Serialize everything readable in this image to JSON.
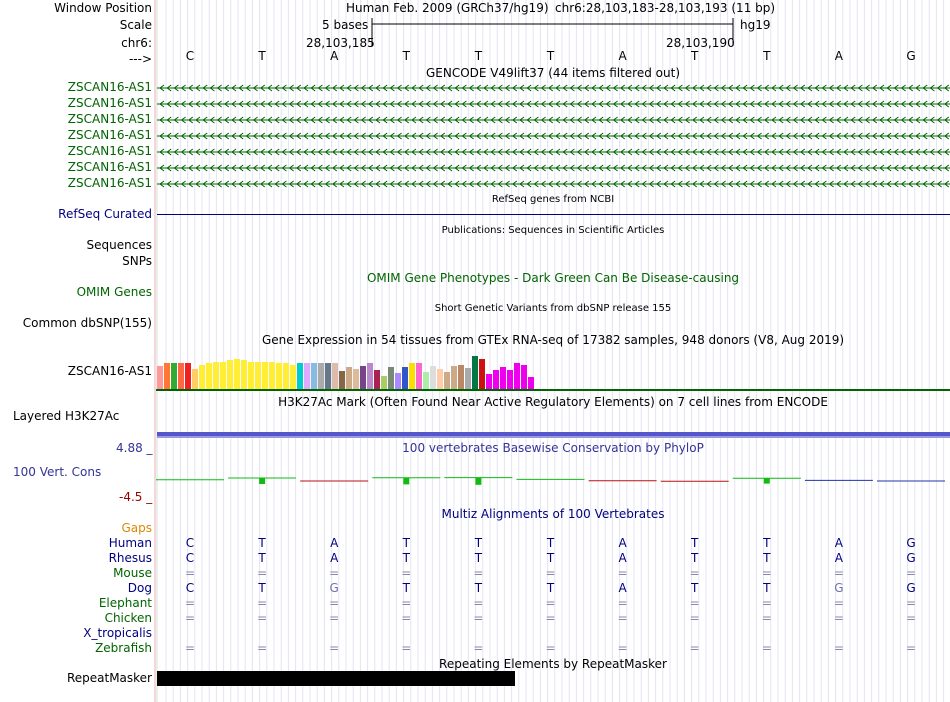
{
  "header": {
    "window_position_label": "Window Position",
    "scale_label": "Scale",
    "chrom_label": "chr6:",
    "arrow_label": "--->",
    "assembly_title": "Human Feb. 2009 (GRCh37/hg19)",
    "position": "chr6:28,103,183-28,103,193 (11 bp)",
    "scale_text": "5 bases",
    "db": "hg19",
    "coord_left": "28,103,185",
    "coord_right": "28,103,190"
  },
  "sequence": [
    "C",
    "T",
    "A",
    "T",
    "T",
    "T",
    "A",
    "T",
    "T",
    "A",
    "G"
  ],
  "gencode": {
    "title": "GENCODE V49lift37 (44 items filtered out)",
    "items": [
      "ZSCAN16-AS1",
      "ZSCAN16-AS1",
      "ZSCAN16-AS1",
      "ZSCAN16-AS1",
      "ZSCAN16-AS1",
      "ZSCAN16-AS1",
      "ZSCAN16-AS1"
    ]
  },
  "refseq": {
    "title": "RefSeq genes from NCBI",
    "label": "RefSeq Curated"
  },
  "publications": {
    "title": "Publications: Sequences in Scientific Articles",
    "label": "Sequences"
  },
  "snps": {
    "label": "SNPs"
  },
  "omim": {
    "title": "OMIM Gene Phenotypes - Dark Green Can Be Disease-causing",
    "label": "OMIM Genes"
  },
  "dbsnp": {
    "title": "Short Genetic Variants from dbSNP release 155",
    "label": "Common dbSNP(155)"
  },
  "gtex": {
    "title": "Gene Expression in 54 tissues from GTEx RNA-seq of 17382 samples, 948 donors (V8, Aug 2019)",
    "label": "ZSCAN16-AS1",
    "bar_fill_fractions": [
      0.55,
      0.62,
      0.62,
      0.62,
      0.62,
      0.48,
      0.58,
      0.62,
      0.65,
      0.65,
      0.7,
      0.72,
      0.68,
      0.65,
      0.65,
      0.65,
      0.65,
      0.62,
      0.62,
      0.58,
      0.62,
      0.62,
      0.62,
      0.62,
      0.62,
      0.62,
      0.42,
      0.52,
      0.48,
      0.55,
      0.62,
      0.45,
      0.3,
      0.52,
      0.38,
      0.52,
      0.62,
      0.62,
      0.4,
      0.55,
      0.48,
      0.4,
      0.55,
      0.58,
      0.5,
      0.78,
      0.72,
      0.35,
      0.45,
      0.52,
      0.45,
      0.62,
      0.58,
      0.28
    ],
    "bar_colors": [
      "#ff9999",
      "#ff7733",
      "#33aa33",
      "#ff6644",
      "#ee2222",
      "#ffcc66",
      "#ffee33",
      "#ffee33",
      "#ffee33",
      "#ffee33",
      "#ffee33",
      "#ffee33",
      "#ffee33",
      "#ffee33",
      "#ffee33",
      "#ffee33",
      "#ffee33",
      "#ffee33",
      "#ffee33",
      "#ffee33",
      "#00cccc",
      "#ddaaff",
      "#88bbdd",
      "#aaaaaa",
      "#667788",
      "#ddbbaa",
      "#886644",
      "#ccaa88",
      "#ddbb99",
      "#774488",
      "#bb88cc",
      "#aa2255",
      "#aacc66",
      "#778877",
      "#aa88ff",
      "#3355cc",
      "#ffdd00",
      "#ff66cc",
      "#aaeeaa",
      "#dddddd",
      "#ffccaa",
      "#ccaa88",
      "#ccaa88",
      "#bb8866",
      "#aaaaaa",
      "#007744",
      "#cc1111",
      "#ee00ee",
      "#ee00ee",
      "#ee00ee",
      "#ee00ee",
      "#ee00ee",
      "#ee00ee",
      "#ee00ee"
    ]
  },
  "h3k27ac": {
    "title": "H3K27Ac Mark (Often Found Near Active Regulatory Elements) on 7 cell lines from ENCODE",
    "label": "Layered H3K27Ac"
  },
  "phylop": {
    "title": "100 vertebrates Basewise Conservation by PhyloP",
    "label": "100 Vert. Cons",
    "max_label": "4.88 _",
    "min_label": "-4.5 _",
    "values": [
      0.1,
      1.0,
      -0.5,
      1.1,
      1.2,
      0.3,
      -0.4,
      -0.6,
      0.9,
      -0.2,
      -0.5
    ]
  },
  "multiz": {
    "title": "Multiz Alignments of 100 Vertebrates",
    "gaps_label": "Gaps",
    "species": [
      {
        "name": "Human",
        "bases": [
          "C",
          "T",
          "A",
          "T",
          "T",
          "T",
          "A",
          "T",
          "T",
          "A",
          "G"
        ]
      },
      {
        "name": "Rhesus",
        "bases": [
          "C",
          "T",
          "A",
          "T",
          "T",
          "T",
          "A",
          "T",
          "T",
          "A",
          "G"
        ]
      },
      {
        "name": "Mouse",
        "bases": [
          "=",
          "=",
          "=",
          "=",
          "=",
          "=",
          "=",
          "=",
          "=",
          "=",
          "="
        ]
      },
      {
        "name": "Dog",
        "bases": [
          "C",
          "T",
          "G",
          "T",
          "T",
          "T",
          "A",
          "T",
          "T",
          "G",
          "G"
        ]
      },
      {
        "name": "Elephant",
        "bases": [
          "=",
          "=",
          "=",
          "=",
          "=",
          "=",
          "=",
          "=",
          "=",
          "=",
          "="
        ]
      },
      {
        "name": "Chicken",
        "bases": [
          "=",
          "=",
          "=",
          "=",
          "=",
          "=",
          "=",
          "=",
          "=",
          "=",
          "="
        ]
      },
      {
        "name": "X_tropicalis",
        "bases": [
          "",
          "",
          "",
          "",
          "",
          "",
          "",
          "",
          "",
          "",
          ""
        ]
      },
      {
        "name": "Zebrafish",
        "bases": [
          "=",
          "=",
          "=",
          "=",
          "=",
          "=",
          "=",
          "=",
          "=",
          "=",
          "="
        ]
      }
    ]
  },
  "repeatmasker": {
    "title": "Repeating Elements by RepeatMasker",
    "label": "RepeatMasker"
  },
  "colors": {
    "green_label": "#006400",
    "navy_label": "#000080",
    "gaps_label": "#dd8800",
    "phylop_title": "#333399"
  }
}
